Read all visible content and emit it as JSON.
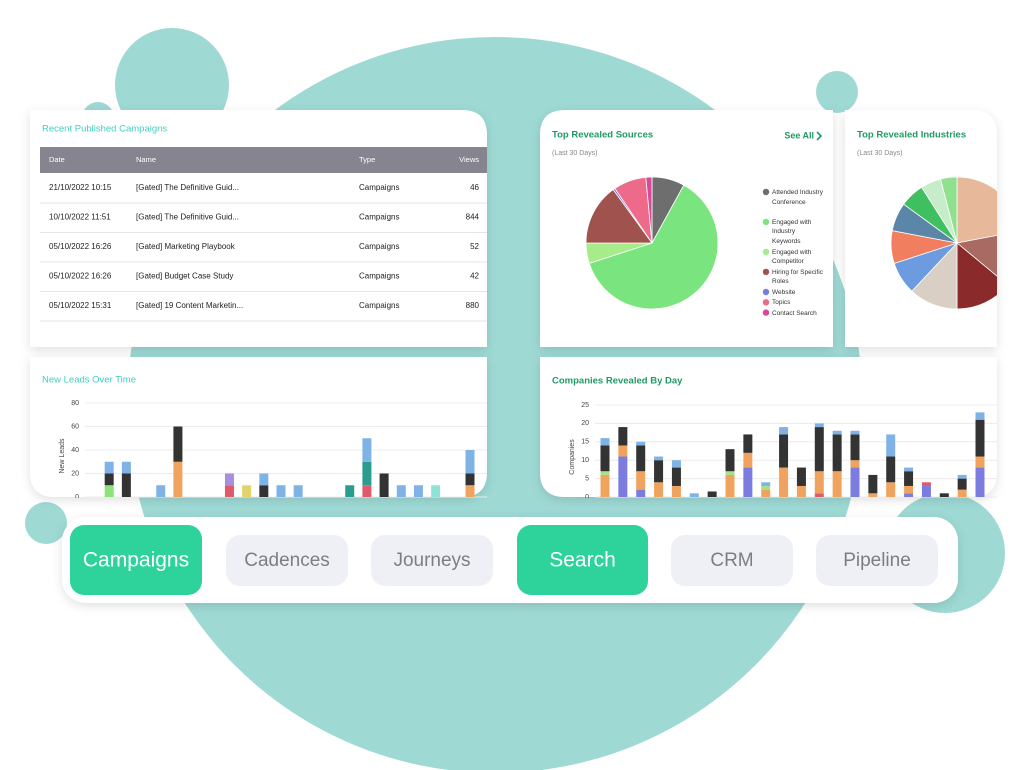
{
  "table": {
    "title": "Recent Published Campaigns",
    "columns": [
      "Date",
      "Name",
      "Type",
      "Views"
    ],
    "rows": [
      [
        "21/10/2022 10:15",
        "[Gated] The Definitive Guid...",
        "Campaigns",
        "46"
      ],
      [
        "10/10/2022 11:51",
        "[Gated] The Definitive Guid...",
        "Campaigns",
        "844"
      ],
      [
        "05/10/2022 16:26",
        "[Gated] Marketing Playbook",
        "Campaigns",
        "52"
      ],
      [
        "05/10/2022 16:26",
        "[Gated] Budget Case Study",
        "Campaigns",
        "42"
      ],
      [
        "05/10/2022 15:31",
        "[Gated] 19 Content Marketin...",
        "Campaigns",
        "880"
      ]
    ]
  },
  "chart_data": [
    {
      "type": "bar",
      "stacked": true,
      "title": "New Leads Over Time",
      "ylabel": "New Leads",
      "categories": [
        null,
        null,
        null,
        null,
        null,
        null,
        null,
        null,
        null,
        null,
        null,
        null,
        null,
        null,
        null,
        null,
        null,
        null,
        null,
        null,
        null,
        null,
        null
      ],
      "ylim": [
        0,
        80
      ],
      "yticks": [
        0,
        20,
        40,
        60,
        80
      ],
      "grid": true,
      "series": [
        {
          "color": "#8ee27a",
          "values": [
            0,
            10,
            0,
            0,
            0,
            0,
            0,
            0,
            0,
            0,
            0,
            0,
            0,
            0,
            0,
            0,
            0,
            0,
            0,
            0,
            0,
            0,
            0
          ]
        },
        {
          "color": "#e05a6b",
          "values": [
            0,
            0,
            0,
            0,
            0,
            0,
            0,
            0,
            10,
            0,
            0,
            0,
            0,
            0,
            0,
            0,
            10,
            0,
            0,
            0,
            0,
            0,
            0
          ]
        },
        {
          "color": "#f0a35e",
          "values": [
            0,
            0,
            0,
            0,
            0,
            30,
            0,
            0,
            0,
            0,
            0,
            0,
            0,
            0,
            0,
            0,
            0,
            0,
            0,
            0,
            0,
            0,
            10
          ]
        },
        {
          "color": "#2a9d8f",
          "values": [
            0,
            0,
            0,
            0,
            0,
            0,
            0,
            0,
            0,
            0,
            0,
            0,
            0,
            0,
            0,
            10,
            20,
            0,
            0,
            0,
            0,
            0,
            0
          ]
        },
        {
          "color": "#333333",
          "values": [
            0,
            10,
            20,
            0,
            0,
            30,
            0,
            0,
            0,
            0,
            10,
            0,
            0,
            0,
            0,
            0,
            0,
            20,
            0,
            0,
            0,
            0,
            10
          ]
        },
        {
          "color": "#a98ee0",
          "values": [
            0,
            0,
            0,
            0,
            0,
            0,
            0,
            0,
            10,
            0,
            0,
            0,
            0,
            0,
            0,
            0,
            0,
            0,
            0,
            0,
            0,
            0,
            0
          ]
        },
        {
          "color": "#e3d36a",
          "values": [
            0,
            0,
            0,
            0,
            0,
            0,
            0,
            0,
            0,
            10,
            0,
            0,
            0,
            0,
            0,
            0,
            0,
            0,
            0,
            0,
            0,
            0,
            0
          ]
        },
        {
          "color": "#8fe3d6",
          "values": [
            0,
            0,
            0,
            0,
            0,
            0,
            0,
            0,
            0,
            0,
            0,
            0,
            0,
            0,
            0,
            0,
            0,
            0,
            0,
            0,
            10,
            0,
            0
          ]
        },
        {
          "color": "#7fb3e6",
          "values": [
            0,
            10,
            10,
            0,
            10,
            0,
            0,
            0,
            0,
            0,
            10,
            10,
            10,
            0,
            0,
            0,
            20,
            0,
            10,
            10,
            0,
            0,
            20
          ]
        }
      ]
    },
    {
      "type": "pie",
      "title": "Top Revealed Sources",
      "subtitle": "(Last 30 Days)",
      "link": "See All",
      "categories": [
        "Attended Industry Conference",
        "Engaged with Industry Keywords",
        "Engaged with Competitor",
        "Hiring for Specific Roles",
        "Website",
        "Topics",
        "Contact Search"
      ],
      "values": [
        8,
        62,
        5,
        15,
        0.5,
        8,
        1.5
      ],
      "colors": [
        "#6e6e6e",
        "#7ae47e",
        "#a6ec8a",
        "#a0524e",
        "#7b7be0",
        "#ee6a8a",
        "#d9489a"
      ]
    },
    {
      "type": "pie",
      "title": "Top Revealed Industries",
      "subtitle": "(Last 30 Days)",
      "values": [
        22,
        14,
        14,
        12,
        8,
        8,
        7,
        6,
        5,
        4
      ],
      "colors": [
        "#e8b89a",
        "#a86a62",
        "#8b2a2a",
        "#d9cfc4",
        "#6d9be0",
        "#f07e5f",
        "#5b86a8",
        "#3fbf5f",
        "#c6ecc9",
        "#8fe08f"
      ]
    },
    {
      "type": "bar",
      "stacked": true,
      "title": "Companies Revealed By Day",
      "ylabel": "Companies",
      "categories": [
        null,
        null,
        null,
        null,
        null,
        null,
        null,
        null,
        null,
        null,
        null,
        null,
        null,
        null,
        null,
        null,
        null,
        null,
        null,
        null,
        null,
        null
      ],
      "ylim": [
        0,
        25
      ],
      "yticks": [
        0,
        5,
        10,
        15,
        20,
        25
      ],
      "grid": true,
      "series": [
        {
          "color": "#7b7be0",
          "values": [
            0,
            11,
            2,
            0,
            0,
            0,
            0,
            0,
            8,
            0,
            0,
            0,
            0,
            0,
            8,
            0,
            0,
            1,
            3,
            0,
            0,
            8
          ]
        },
        {
          "color": "#e05a6b",
          "values": [
            0,
            0,
            0,
            0,
            0,
            0,
            0,
            0,
            0,
            0,
            0,
            0,
            1,
            0,
            0,
            0,
            0,
            0,
            1,
            0,
            0,
            0
          ]
        },
        {
          "color": "#f0a35e",
          "values": [
            6,
            3,
            5,
            4,
            3,
            0,
            0,
            6,
            4,
            2,
            8,
            3,
            6,
            7,
            2,
            1,
            4,
            2,
            0,
            0,
            2,
            3
          ]
        },
        {
          "color": "#a8e08a",
          "values": [
            1,
            0,
            0,
            0,
            0,
            0,
            0,
            1,
            0,
            1,
            0,
            0,
            0,
            0,
            0,
            0,
            0,
            0,
            0,
            0,
            0,
            0
          ]
        },
        {
          "color": "#333333",
          "values": [
            7,
            5,
            7,
            6,
            5,
            0,
            1.5,
            6,
            5,
            0,
            9,
            5,
            12,
            10,
            7,
            5,
            7,
            4,
            0,
            1,
            3,
            10
          ]
        },
        {
          "color": "#7fb3e6",
          "values": [
            2,
            0,
            1,
            1,
            2,
            1,
            0,
            0,
            0,
            1,
            2,
            0,
            1,
            1,
            1,
            0,
            6,
            1,
            0,
            0,
            1,
            2
          ]
        }
      ]
    }
  ],
  "nav": [
    {
      "label": "Campaigns",
      "active": true
    },
    {
      "label": "Cadences",
      "active": false
    },
    {
      "label": "Journeys",
      "active": false
    },
    {
      "label": "Search",
      "active": true
    },
    {
      "label": "CRM",
      "active": false
    },
    {
      "label": "Pipeline",
      "active": false
    }
  ]
}
